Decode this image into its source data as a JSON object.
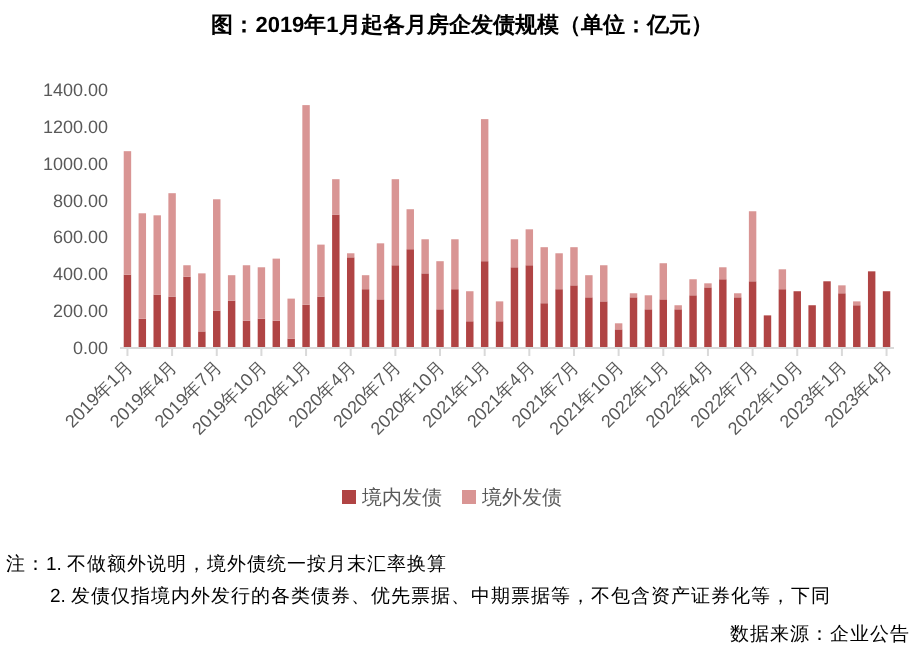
{
  "chart_data": {
    "type": "bar",
    "title": "图：2019年1月起各月房企发债规模（单位：亿元）",
    "categories": [
      "2019年1月",
      null,
      null,
      "2019年4月",
      null,
      null,
      "2019年7月",
      null,
      null,
      "2019年10月",
      null,
      null,
      "2020年1月",
      null,
      null,
      "2020年4月",
      null,
      null,
      "2020年7月",
      null,
      null,
      "2020年10月",
      null,
      null,
      "2021年1月",
      null,
      null,
      "2021年4月",
      null,
      null,
      "2021年7月",
      null,
      null,
      "2021年10月",
      null,
      null,
      "2022年1月",
      null,
      null,
      "2022年4月",
      null,
      null,
      "2022年7月",
      null,
      null,
      "2022年10月",
      null,
      null,
      "2023年1月",
      null,
      null,
      "2023年4月"
    ],
    "stacked": true,
    "series": [
      {
        "name": "境内发债",
        "color": "#b04444",
        "values": [
          398,
          159,
          290,
          279,
          387,
          90,
          203,
          257,
          148,
          159,
          148,
          51,
          235,
          279,
          724,
          492,
          319,
          264,
          449,
          536,
          405,
          210,
          319,
          145,
          471,
          145,
          438,
          449,
          243,
          319,
          340,
          275,
          253,
          101,
          275,
          210,
          264,
          210,
          286,
          329,
          373,
          275,
          362,
          177,
          319,
          308,
          232,
          362,
          297,
          232,
          416,
          308
        ]
      },
      {
        "name": "境外发债",
        "color": "#d99594",
        "values": [
          670,
          572,
          430,
          561,
          62,
          315,
          604,
          138,
          301,
          279,
          337,
          217,
          1083,
          282,
          192,
          22,
          76,
          304,
          467,
          217,
          185,
          261,
          271,
          163,
          771,
          108,
          152,
          195,
          304,
          195,
          207,
          120,
          196,
          33,
          22,
          76,
          196,
          22,
          87,
          22,
          65,
          22,
          380,
          0,
          108,
          0,
          0,
          0,
          43,
          21,
          0,
          0
        ]
      }
    ],
    "ylim": [
      0,
      1400
    ],
    "yticks": [
      {
        "value": 0,
        "label": "0.00"
      },
      {
        "value": 200,
        "label": "200.00"
      },
      {
        "value": 400,
        "label": "400.00"
      },
      {
        "value": 600,
        "label": "600.00"
      },
      {
        "value": 800,
        "label": "800.00"
      },
      {
        "value": 1000,
        "label": "1000.00"
      },
      {
        "value": 1200,
        "label": "1200.00"
      },
      {
        "value": 1400,
        "label": "1400.00"
      }
    ],
    "legend": "bottom",
    "annotations": [
      "注：1. 不做额外说明，境外债统一按月末汇率换算",
      "2. 发债仅指境内外发行的各类债券、优先票据、中期票据等，不包含资产证券化等，下同",
      "数据来源：企业公告"
    ]
  }
}
